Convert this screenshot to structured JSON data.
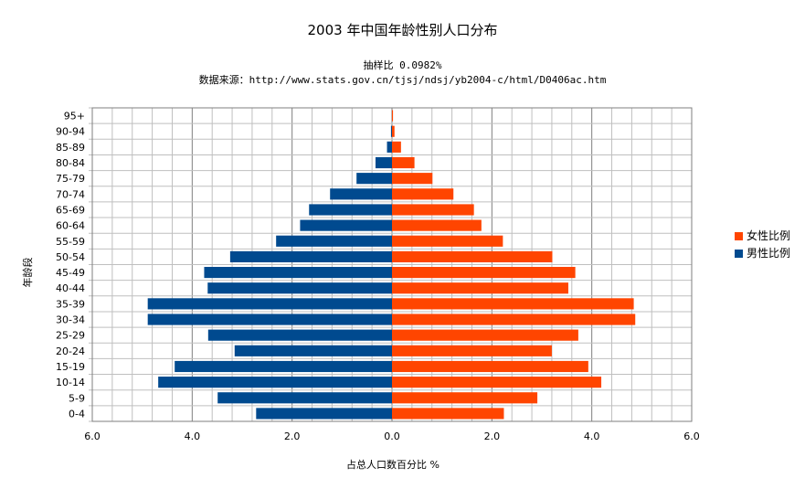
{
  "colors": {
    "female": "#ff4500",
    "male": "#004a8f",
    "grid_minor": "#bfbfbf",
    "grid_major": "#7f7f7f"
  },
  "chart_data": {
    "type": "bar",
    "orientation": "horizontal",
    "title": "2003 年中国年龄性别人口分布",
    "subtitle_1": "抽样比 0.0982%",
    "subtitle_2": "数据来源：http://www.stats.gov.cn/tjsj/ndsj/yb2004-c/html/D0406ac.htm",
    "xlabel": "占总人口数百分比 %",
    "ylabel": "年龄段",
    "xlim": [
      -6,
      6
    ],
    "x_ticks": [
      "6.0",
      "4.0",
      "2.0",
      "0.0",
      "2.0",
      "4.0",
      "6.0"
    ],
    "grid": true,
    "legend_position": "right",
    "categories": [
      "95+",
      "90-94",
      "85-89",
      "80-84",
      "75-79",
      "70-74",
      "65-69",
      "60-64",
      "55-59",
      "50-54",
      "45-49",
      "40-44",
      "35-39",
      "30-34",
      "25-29",
      "20-24",
      "15-19",
      "10-14",
      "5-9",
      "0-4"
    ],
    "series": [
      {
        "name": "女性比例",
        "color": "#ff4500",
        "side": "right",
        "values": [
          0.02,
          0.05,
          0.18,
          0.45,
          0.81,
          1.23,
          1.64,
          1.79,
          2.22,
          3.21,
          3.67,
          3.53,
          4.84,
          4.87,
          3.73,
          3.2,
          3.93,
          4.19,
          2.91,
          2.24
        ]
      },
      {
        "name": "男性比例",
        "color": "#004a8f",
        "side": "left",
        "values": [
          0.0,
          0.02,
          0.1,
          0.33,
          0.71,
          1.24,
          1.66,
          1.84,
          2.32,
          3.24,
          3.76,
          3.69,
          4.89,
          4.89,
          3.68,
          3.15,
          4.35,
          4.68,
          3.49,
          2.72
        ]
      }
    ]
  }
}
